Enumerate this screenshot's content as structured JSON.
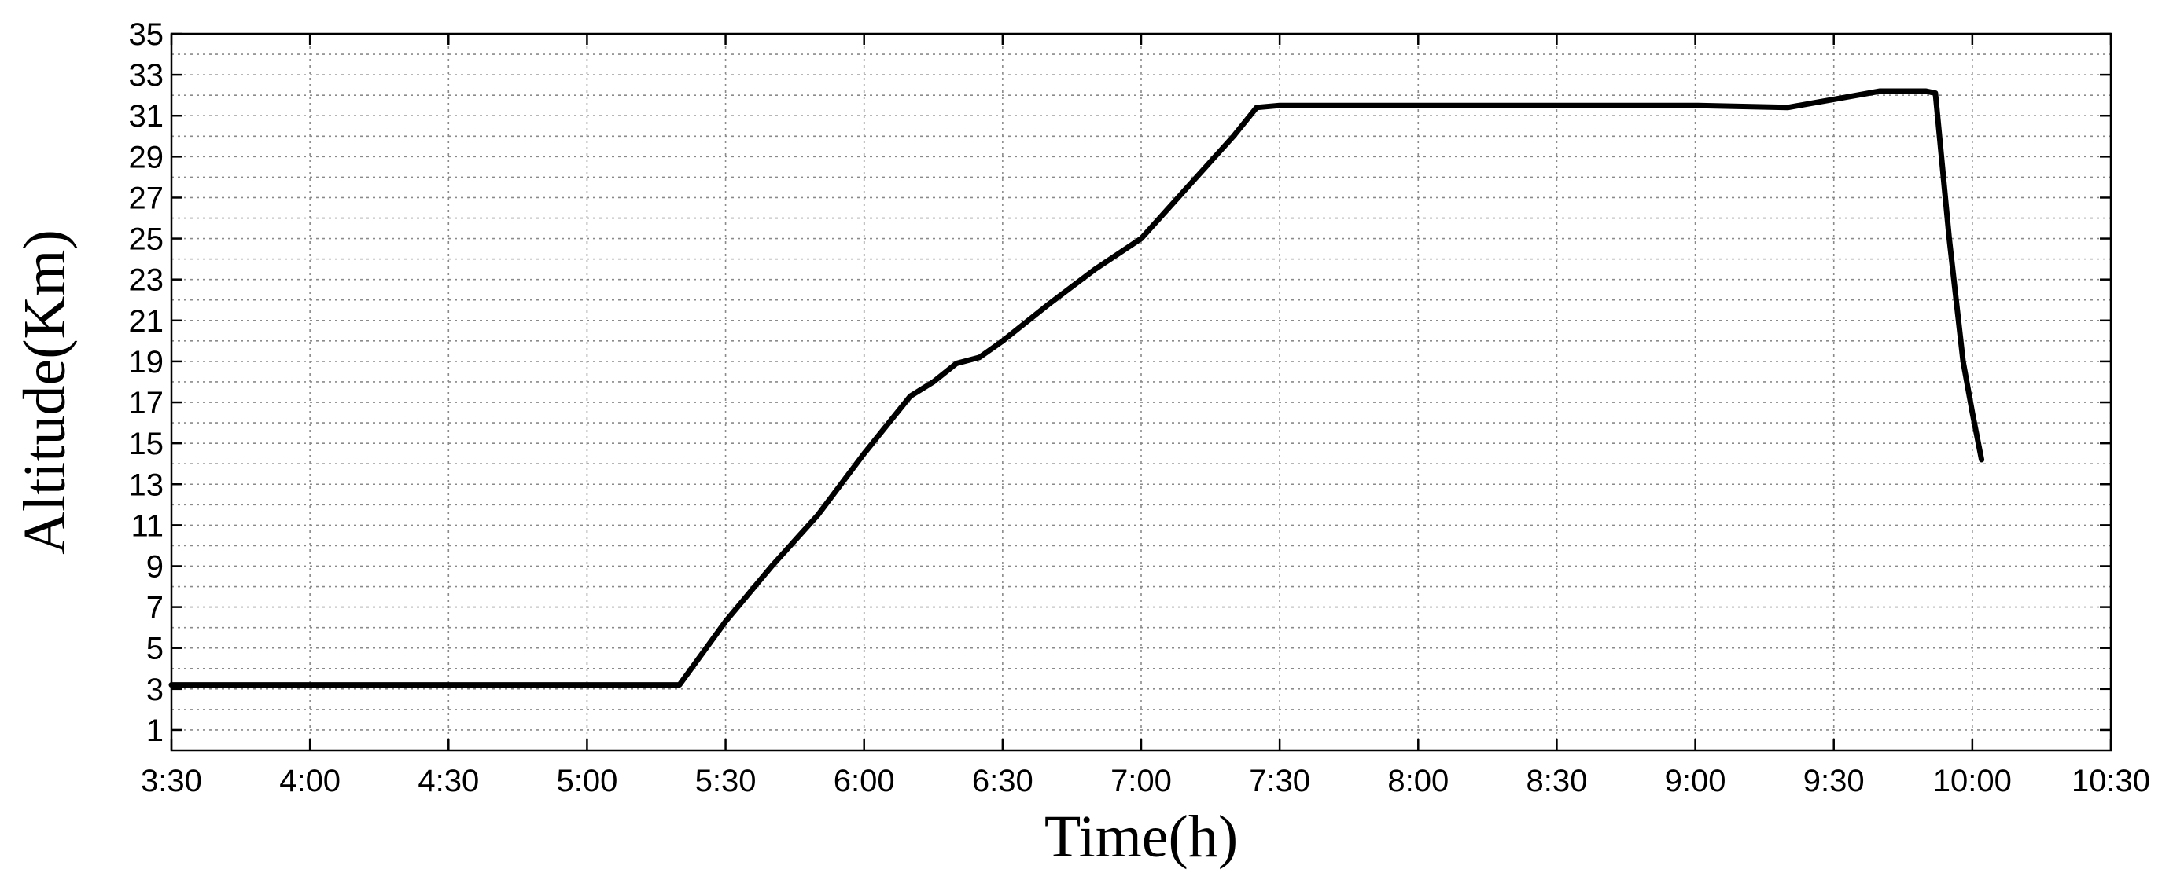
{
  "chart_data": {
    "type": "line",
    "title": "",
    "xlabel": "Time(h)",
    "ylabel": "Altitude(Km)",
    "xlim": [
      "3:30",
      "10:30"
    ],
    "ylim": [
      0,
      35
    ],
    "x_ticks": [
      "3:30",
      "4:00",
      "4:30",
      "5:00",
      "5:30",
      "6:00",
      "6:30",
      "7:00",
      "7:30",
      "8:00",
      "8:30",
      "9:00",
      "9:30",
      "10:00",
      "10:30"
    ],
    "y_ticks": [
      "1",
      "3",
      "5",
      "7",
      "9",
      "11",
      "13",
      "15",
      "17",
      "19",
      "21",
      "23",
      "25",
      "27",
      "29",
      "31",
      "33",
      "35"
    ],
    "grid": true,
    "legend": "none",
    "line_color": "#000000",
    "series": [
      {
        "x": [
          "3:30",
          "4:00",
          "4:30",
          "5:00",
          "5:20",
          "5:30",
          "5:40",
          "5:50",
          "6:00",
          "6:10",
          "6:15",
          "6:20",
          "6:25",
          "6:30",
          "6:40",
          "6:50",
          "7:00",
          "7:10",
          "7:20",
          "7:25",
          "7:30",
          "8:00",
          "8:30",
          "9:00",
          "9:20",
          "9:30",
          "9:40",
          "9:50",
          "9:52",
          "9:55",
          "9:58",
          "10:00",
          "10:02"
        ],
        "y": [
          3.2,
          3.2,
          3.2,
          3.2,
          3.2,
          6.3,
          9.0,
          11.5,
          14.5,
          17.3,
          18.0,
          18.9,
          19.2,
          20.0,
          21.8,
          23.5,
          25.0,
          27.5,
          30.0,
          31.4,
          31.5,
          31.5,
          31.5,
          31.5,
          31.4,
          31.8,
          32.2,
          32.2,
          32.1,
          25.0,
          19.0,
          16.5,
          14.2
        ]
      }
    ]
  }
}
